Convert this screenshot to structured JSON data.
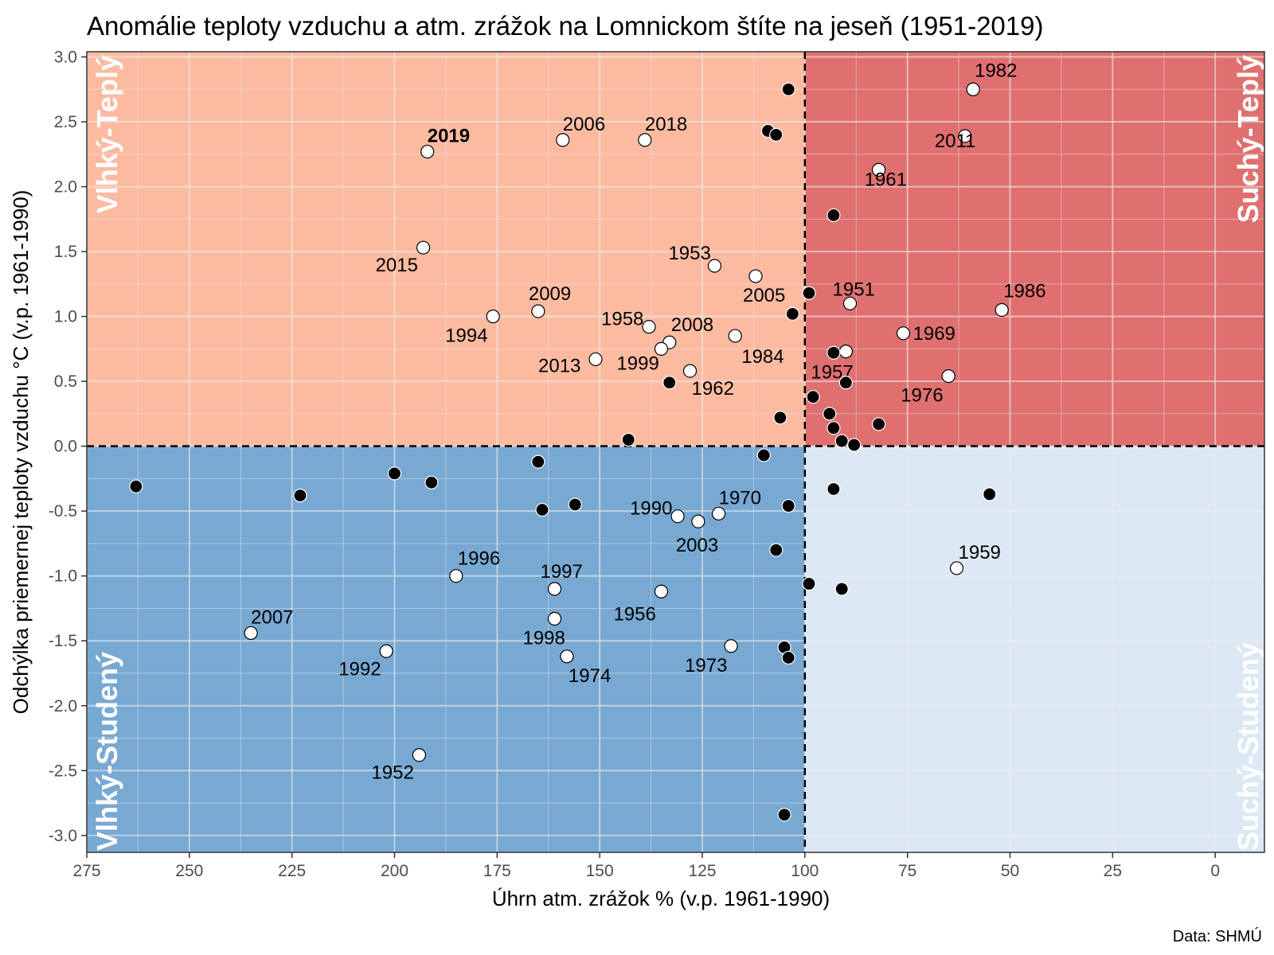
{
  "colors": {
    "wet_warm": "#fcbba1",
    "dry_warm": "#e07070",
    "wet_cold": "#78a9d3",
    "dry_cold": "#dce8f4",
    "point_normal": "#000000",
    "point_labeled": "#ffffff"
  },
  "caption": "Data: SHMÚ",
  "chart_data": {
    "type": "scatter",
    "title": "Anomálie teploty vzduchu a atm. zrážok na Lomnickom štíte na jeseň (1951-2019)",
    "xlabel": "Úhrn atm. zrážok % (v.p. 1961-1990)",
    "ylabel": "Odchýlka priemernej teploty vzduchu °C (v.p. 1961-1990)",
    "xlim": [
      275,
      -12
    ],
    "ylim": [
      -3.13,
      3.04
    ],
    "x_reversed": true,
    "x_ticks": [
      275,
      250,
      225,
      200,
      175,
      150,
      125,
      100,
      75,
      50,
      25,
      0
    ],
    "x_tick_labels": [
      "275",
      "250",
      "225",
      "200",
      "175",
      "150",
      "125",
      "100",
      "75",
      "50",
      "25",
      "0"
    ],
    "y_ticks": [
      3.0,
      2.5,
      2.0,
      1.5,
      1.0,
      0.5,
      0.0,
      -0.5,
      -1.0,
      -1.5,
      -2.0,
      -2.5,
      -3.0
    ],
    "y_tick_labels": [
      "3.0",
      "2.5",
      "2.0",
      "1.5",
      "1.0",
      "0.5",
      "0.0",
      "-0.5",
      "-1.0",
      "-1.5",
      "-2.0",
      "-2.5",
      "-3.0"
    ],
    "grid": true,
    "reference_lines": {
      "x": 100,
      "y": 0
    },
    "quadrants": [
      {
        "label": "Vlhký-Teplý",
        "position": "top-left"
      },
      {
        "label": "Suchý-Teplý",
        "position": "top-right"
      },
      {
        "label": "Vlhký-Studený",
        "position": "bottom-left"
      },
      {
        "label": "Suchý-Studený",
        "position": "bottom-right"
      }
    ],
    "points": [
      {
        "x": 59,
        "y": 2.75,
        "year": "1982",
        "labeled": true
      },
      {
        "x": 61,
        "y": 2.39,
        "year": "2011",
        "labeled": true
      },
      {
        "x": 82,
        "y": 2.13,
        "year": "1961",
        "labeled": true
      },
      {
        "x": 52,
        "y": 1.05,
        "year": "1986",
        "labeled": true
      },
      {
        "x": 76,
        "y": 0.87,
        "year": "1969",
        "labeled": true
      },
      {
        "x": 65,
        "y": 0.54,
        "year": "1976",
        "labeled": true
      },
      {
        "x": 89,
        "y": 1.1,
        "year": "1951",
        "labeled": true
      },
      {
        "x": 90,
        "y": 0.73,
        "year": "1957",
        "labeled": true
      },
      {
        "x": 192,
        "y": 2.27,
        "year": "2019",
        "labeled": true,
        "bold": true
      },
      {
        "x": 159,
        "y": 2.36,
        "year": "2006",
        "labeled": true
      },
      {
        "x": 139,
        "y": 2.36,
        "year": "2018",
        "labeled": true
      },
      {
        "x": 193,
        "y": 1.53,
        "year": "2015",
        "labeled": true
      },
      {
        "x": 122,
        "y": 1.39,
        "year": "1953",
        "labeled": true
      },
      {
        "x": 112,
        "y": 1.31,
        "year": "2005",
        "labeled": true
      },
      {
        "x": 165,
        "y": 1.04,
        "year": "2009",
        "labeled": true
      },
      {
        "x": 176,
        "y": 1.0,
        "year": "1994",
        "labeled": true
      },
      {
        "x": 138,
        "y": 0.92,
        "year": "1958",
        "labeled": true
      },
      {
        "x": 133,
        "y": 0.8,
        "year": "2008",
        "labeled": true
      },
      {
        "x": 117,
        "y": 0.85,
        "year": "1984",
        "labeled": true
      },
      {
        "x": 151,
        "y": 0.67,
        "year": "2013",
        "labeled": true
      },
      {
        "x": 135,
        "y": 0.75,
        "year": "1999",
        "labeled": true
      },
      {
        "x": 128,
        "y": 0.58,
        "year": "1962",
        "labeled": true
      },
      {
        "x": 121,
        "y": -0.52,
        "year": "1970",
        "labeled": true
      },
      {
        "x": 131,
        "y": -0.54,
        "year": "1990",
        "labeled": true
      },
      {
        "x": 126,
        "y": -0.58,
        "year": "2003",
        "labeled": true
      },
      {
        "x": 63,
        "y": -0.94,
        "year": "1959",
        "labeled": true
      },
      {
        "x": 185,
        "y": -1.0,
        "year": "1996",
        "labeled": true
      },
      {
        "x": 161,
        "y": -1.1,
        "year": "1997",
        "labeled": true
      },
      {
        "x": 135,
        "y": -1.12,
        "year": "1956",
        "labeled": true
      },
      {
        "x": 161,
        "y": -1.33,
        "year": "1998",
        "labeled": true
      },
      {
        "x": 235,
        "y": -1.44,
        "year": "2007",
        "labeled": true
      },
      {
        "x": 202,
        "y": -1.58,
        "year": "1992",
        "labeled": true
      },
      {
        "x": 158,
        "y": -1.62,
        "year": "1974",
        "labeled": true
      },
      {
        "x": 118,
        "y": -1.54,
        "year": "1973",
        "labeled": true
      },
      {
        "x": 194,
        "y": -2.38,
        "year": "1952",
        "labeled": true
      },
      {
        "x": 104,
        "y": 2.75,
        "labeled": false
      },
      {
        "x": 109,
        "y": 2.43,
        "labeled": false
      },
      {
        "x": 107,
        "y": 2.4,
        "labeled": false
      },
      {
        "x": 93,
        "y": 1.78,
        "labeled": false
      },
      {
        "x": 99,
        "y": 1.18,
        "labeled": false
      },
      {
        "x": 103,
        "y": 1.02,
        "labeled": false
      },
      {
        "x": 93,
        "y": 0.72,
        "labeled": false
      },
      {
        "x": 90,
        "y": 0.49,
        "labeled": false
      },
      {
        "x": 133,
        "y": 0.49,
        "labeled": false
      },
      {
        "x": 98,
        "y": 0.38,
        "labeled": false
      },
      {
        "x": 94,
        "y": 0.25,
        "labeled": false
      },
      {
        "x": 106,
        "y": 0.22,
        "labeled": false
      },
      {
        "x": 93,
        "y": 0.14,
        "labeled": false
      },
      {
        "x": 82,
        "y": 0.17,
        "labeled": false
      },
      {
        "x": 91,
        "y": 0.04,
        "labeled": false
      },
      {
        "x": 88,
        "y": 0.01,
        "labeled": false
      },
      {
        "x": 143,
        "y": 0.05,
        "labeled": false
      },
      {
        "x": 165,
        "y": -0.12,
        "labeled": false
      },
      {
        "x": 110,
        "y": -0.07,
        "labeled": false
      },
      {
        "x": 263,
        "y": -0.31,
        "labeled": false
      },
      {
        "x": 223,
        "y": -0.38,
        "labeled": false
      },
      {
        "x": 200,
        "y": -0.21,
        "labeled": false
      },
      {
        "x": 191,
        "y": -0.28,
        "labeled": false
      },
      {
        "x": 164,
        "y": -0.49,
        "labeled": false
      },
      {
        "x": 156,
        "y": -0.45,
        "labeled": false
      },
      {
        "x": 104,
        "y": -0.46,
        "labeled": false
      },
      {
        "x": 93,
        "y": -0.33,
        "labeled": false
      },
      {
        "x": 55,
        "y": -0.37,
        "labeled": false
      },
      {
        "x": 107,
        "y": -0.8,
        "labeled": false
      },
      {
        "x": 99,
        "y": -1.06,
        "labeled": false
      },
      {
        "x": 91,
        "y": -1.1,
        "labeled": false
      },
      {
        "x": 105,
        "y": -1.55,
        "labeled": false
      },
      {
        "x": 104,
        "y": -1.63,
        "labeled": false
      },
      {
        "x": 105,
        "y": -2.84,
        "labeled": false
      }
    ]
  }
}
